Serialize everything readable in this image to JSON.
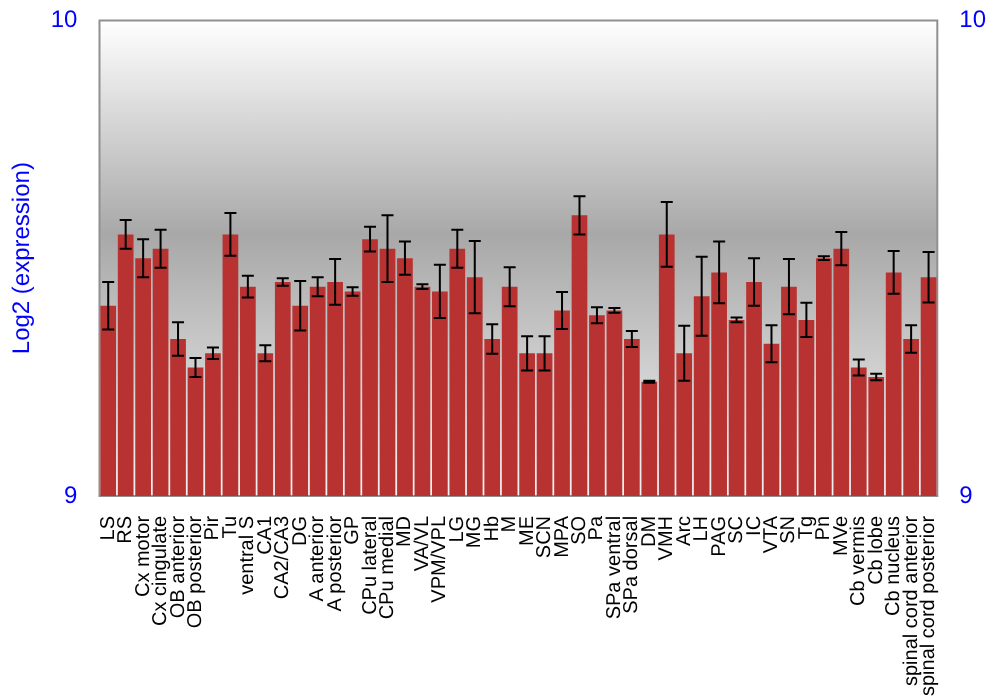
{
  "chart_data": {
    "type": "bar",
    "ylabel": "Log2 (expression)",
    "categories": [
      "LS",
      "RS",
      "Cx motor",
      "Cx cingulate",
      "OB anterior",
      "OB posterior",
      "Pir",
      "Tu",
      "ventral S",
      "CA1",
      "CA2/CA3",
      "DG",
      "A anterior",
      "A posterior",
      "GP",
      "CPu lateral",
      "CPu medial",
      "MD",
      "VA/VL",
      "VPM/VPL",
      "LG",
      "MG",
      "Hb",
      "M",
      "ME",
      "SCN",
      "MPA",
      "SO",
      "Pa",
      "SPa ventral",
      "SPa dorsal",
      "DM",
      "VMH",
      "Arc",
      "LH",
      "PAG",
      "SC",
      "IC",
      "VTA",
      "SN",
      "Tg",
      "Pn",
      "MVe",
      "Cb vermis",
      "Cb lobe",
      "Cb nucleus",
      "spinal cord anterior",
      "spinal cord posterior"
    ],
    "values": [
      9.4,
      9.55,
      9.5,
      9.52,
      9.33,
      9.27,
      9.3,
      9.55,
      9.44,
      9.3,
      9.45,
      9.4,
      9.44,
      9.45,
      9.43,
      9.54,
      9.52,
      9.5,
      9.44,
      9.43,
      9.52,
      9.46,
      9.33,
      9.44,
      9.3,
      9.3,
      9.39,
      9.59,
      9.38,
      9.39,
      9.33,
      9.24,
      9.55,
      9.3,
      9.42,
      9.47,
      9.37,
      9.45,
      9.32,
      9.44,
      9.37,
      9.5,
      9.52,
      9.27,
      9.25,
      9.47,
      9.33,
      9.46
    ],
    "errors": [
      0.05,
      0.03,
      0.04,
      0.04,
      0.035,
      0.02,
      0.012,
      0.045,
      0.023,
      0.017,
      0.008,
      0.052,
      0.02,
      0.048,
      0.009,
      0.026,
      0.07,
      0.035,
      0.005,
      0.056,
      0.04,
      0.076,
      0.031,
      0.041,
      0.036,
      0.036,
      0.039,
      0.04,
      0.017,
      0.005,
      0.017,
      0.002,
      0.068,
      0.058,
      0.083,
      0.065,
      0.005,
      0.05,
      0.039,
      0.058,
      0.036,
      0.004,
      0.035,
      0.017,
      0.007,
      0.045,
      0.029,
      0.053
    ],
    "color": "#b83232",
    "ylim": [
      9,
      10
    ],
    "yticks": [
      9,
      10
    ],
    "y2lim": [
      9,
      10
    ],
    "y2ticks": [
      9,
      10
    ],
    "grid": false,
    "legend": false
  }
}
